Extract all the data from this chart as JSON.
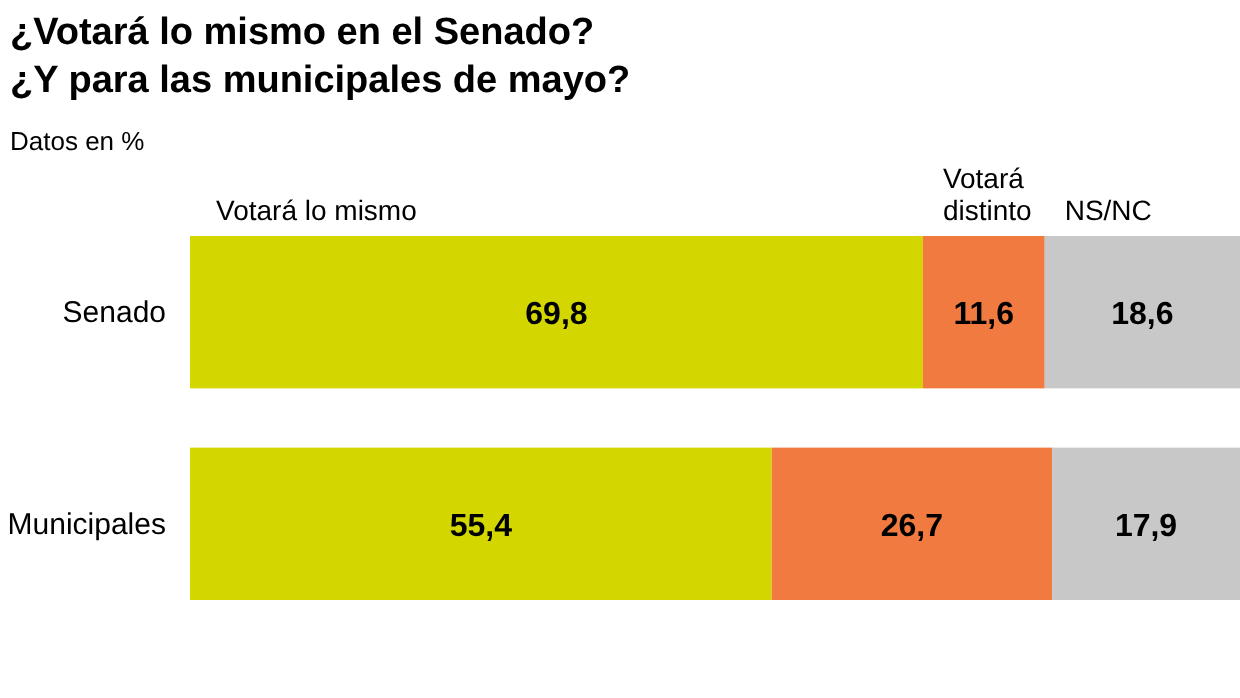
{
  "chart_data": {
    "type": "bar",
    "title": "¿Votará lo mismo en el Senado?\n¿Y para las municipales de mayo?",
    "subtitle": "Datos en %",
    "orientation": "horizontal",
    "stacked": true,
    "tick_labels": "y",
    "categories": [
      "Senado",
      "Municipales"
    ],
    "series": [
      {
        "name": "Votará lo mismo",
        "color": "#d4d600",
        "values": [
          69.8,
          55.4
        ],
        "value_labels": [
          "69,8",
          "55,4"
        ]
      },
      {
        "name": "Votará distinto",
        "color": "#f07a40",
        "values": [
          11.6,
          26.7
        ],
        "value_labels": [
          "11,6",
          "26,7"
        ]
      },
      {
        "name": "NS/NC",
        "color": "#c8c8c8",
        "values": [
          18.6,
          17.9
        ],
        "value_labels": [
          "18,6",
          "17,9"
        ]
      }
    ]
  }
}
